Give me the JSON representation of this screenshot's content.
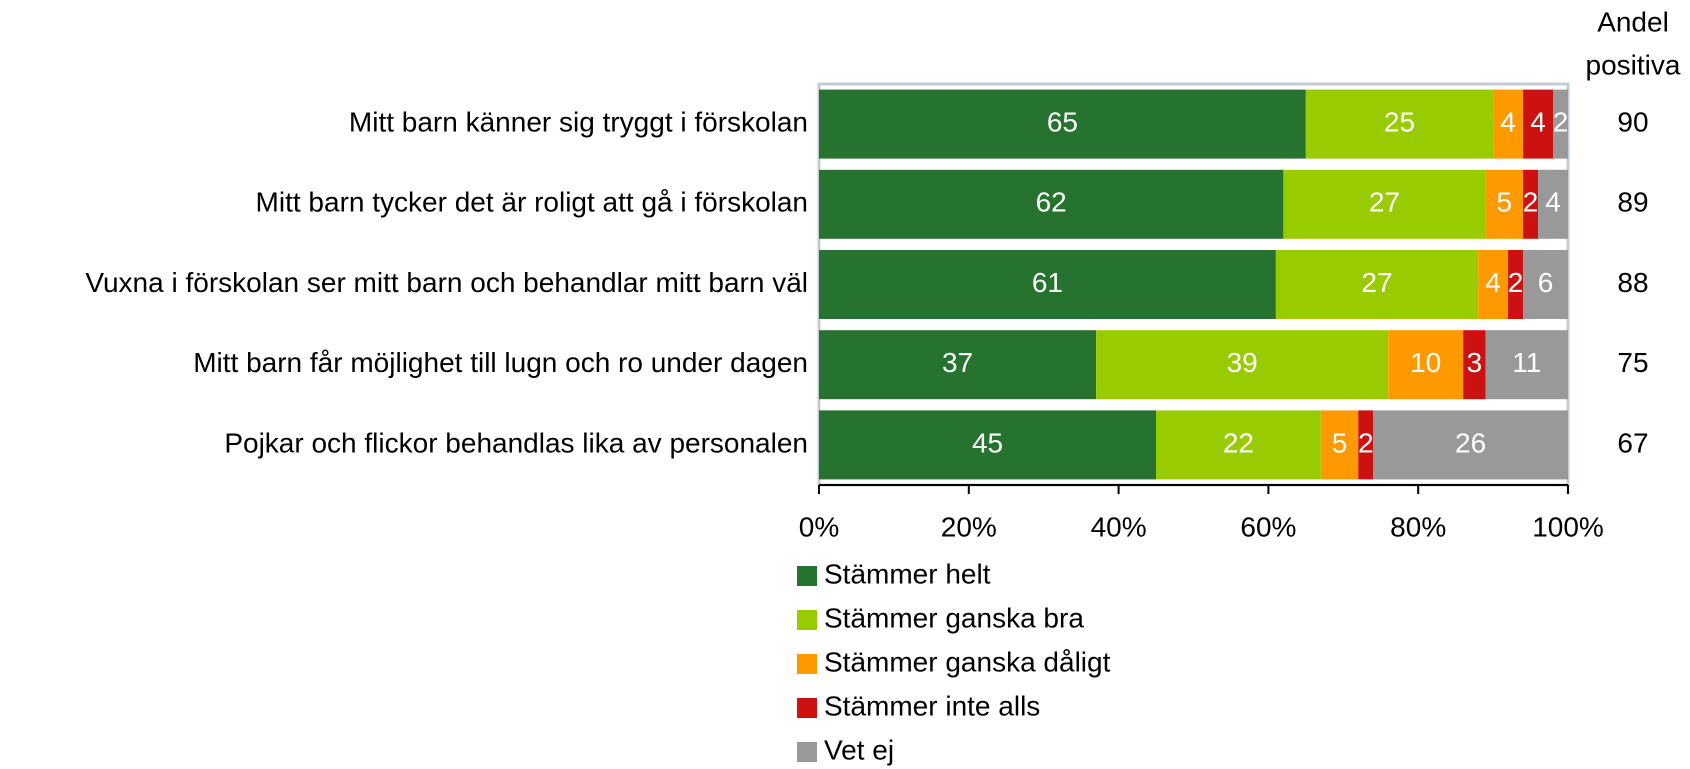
{
  "chart_data": {
    "type": "stacked-bar-horizontal",
    "categories": [
      "Mitt barn känner sig tryggt i förskolan",
      "Mitt barn tycker det är roligt att gå i förskolan",
      "Vuxna i förskolan ser mitt barn och behandlar mitt barn väl",
      "Mitt barn får möjlighet till lugn och ro under dagen",
      "Pojkar och flickor behandlas lika av personalen"
    ],
    "series": [
      {
        "name": "Stämmer helt",
        "color": "#267330",
        "values": [
          65,
          62,
          61,
          37,
          45
        ]
      },
      {
        "name": "Stämmer ganska bra",
        "color": "#99cc00",
        "values": [
          25,
          27,
          27,
          39,
          22
        ]
      },
      {
        "name": "Stämmer ganska dåligt",
        "color": "#ff9900",
        "values": [
          4,
          5,
          4,
          10,
          5
        ]
      },
      {
        "name": "Stämmer inte alls",
        "color": "#cc1111",
        "values": [
          4,
          2,
          2,
          3,
          2
        ]
      },
      {
        "name": "Vet ej",
        "color": "#999999",
        "values": [
          2,
          4,
          6,
          11,
          26
        ]
      }
    ],
    "xlim": [
      0,
      100
    ],
    "xticks": [
      {
        "value": 0,
        "label": "0%"
      },
      {
        "value": 20,
        "label": "20%"
      },
      {
        "value": 40,
        "label": "40%"
      },
      {
        "value": 60,
        "label": "60%"
      },
      {
        "value": 80,
        "label": "80%"
      },
      {
        "value": 100,
        "label": "100%"
      }
    ],
    "side_header": [
      "Andel",
      "positiva"
    ],
    "side_values": [
      90,
      89,
      88,
      75,
      67
    ],
    "legend": "bottom"
  }
}
